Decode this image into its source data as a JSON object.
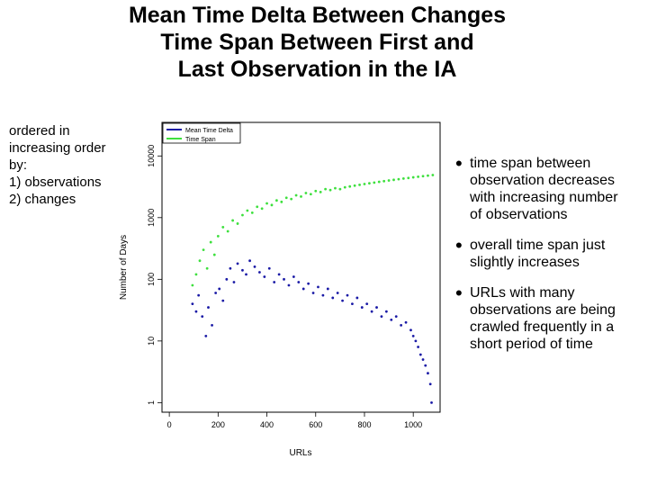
{
  "title_lines": [
    "Mean Time Delta Between Changes",
    "Time Span Between First and",
    "Last Observation in the IA"
  ],
  "side_note_lines": [
    "ordered in",
    "increasing order",
    "by:",
    "1) observations",
    "2) changes"
  ],
  "bullets": [
    {
      "lines": [
        "time span between",
        "observation decreases",
        "with increasing number",
        "of observations"
      ]
    },
    {
      "lines": [
        "overall time span just",
        "slightly increases"
      ]
    },
    {
      "lines": [
        "URLs with many",
        "observations are being",
        "crawled frequently in a",
        "short period of time"
      ]
    }
  ],
  "colors": {
    "mean_time_delta": "#1a1aa6",
    "time_span": "#3ee03e"
  },
  "chart_data": {
    "type": "scatter",
    "xlabel": "URLs",
    "ylabel": "Number of Days",
    "x_ticks": [
      0,
      200,
      400,
      600,
      800,
      1000
    ],
    "y_ticks": [
      1,
      10,
      100,
      1000,
      10000
    ],
    "y_tick_labels": [
      "1",
      "10",
      "100",
      "1000",
      "10000"
    ],
    "xlim": [
      -30,
      1110
    ],
    "ylim": [
      0.7,
      35000
    ],
    "y_scale": "log",
    "legend": "top-left",
    "x_range": [
      90,
      1090
    ],
    "series": [
      {
        "name": "Mean Time Delta",
        "color": "#1a1aa6",
        "points": [
          [
            95,
            40
          ],
          [
            110,
            30
          ],
          [
            120,
            55
          ],
          [
            135,
            25
          ],
          [
            150,
            12
          ],
          [
            160,
            35
          ],
          [
            175,
            18
          ],
          [
            190,
            60
          ],
          [
            205,
            70
          ],
          [
            220,
            45
          ],
          [
            235,
            100
          ],
          [
            250,
            150
          ],
          [
            265,
            90
          ],
          [
            280,
            180
          ],
          [
            300,
            140
          ],
          [
            315,
            120
          ],
          [
            330,
            200
          ],
          [
            350,
            160
          ],
          [
            370,
            130
          ],
          [
            390,
            110
          ],
          [
            410,
            150
          ],
          [
            430,
            90
          ],
          [
            450,
            120
          ],
          [
            470,
            100
          ],
          [
            490,
            80
          ],
          [
            510,
            110
          ],
          [
            530,
            90
          ],
          [
            550,
            70
          ],
          [
            570,
            85
          ],
          [
            590,
            60
          ],
          [
            610,
            75
          ],
          [
            630,
            55
          ],
          [
            650,
            70
          ],
          [
            670,
            50
          ],
          [
            690,
            60
          ],
          [
            710,
            45
          ],
          [
            730,
            55
          ],
          [
            750,
            40
          ],
          [
            770,
            50
          ],
          [
            790,
            35
          ],
          [
            810,
            40
          ],
          [
            830,
            30
          ],
          [
            850,
            35
          ],
          [
            870,
            25
          ],
          [
            890,
            30
          ],
          [
            910,
            22
          ],
          [
            930,
            25
          ],
          [
            950,
            18
          ],
          [
            970,
            20
          ],
          [
            990,
            15
          ],
          [
            1000,
            12
          ],
          [
            1010,
            10
          ],
          [
            1020,
            8
          ],
          [
            1030,
            6
          ],
          [
            1040,
            5
          ],
          [
            1050,
            4
          ],
          [
            1060,
            3
          ],
          [
            1070,
            2
          ],
          [
            1075,
            1
          ]
        ]
      },
      {
        "name": "Time Span",
        "color": "#3ee03e",
        "points": [
          [
            95,
            80
          ],
          [
            110,
            120
          ],
          [
            125,
            200
          ],
          [
            140,
            300
          ],
          [
            155,
            150
          ],
          [
            170,
            400
          ],
          [
            185,
            250
          ],
          [
            200,
            500
          ],
          [
            220,
            700
          ],
          [
            240,
            600
          ],
          [
            260,
            900
          ],
          [
            280,
            800
          ],
          [
            300,
            1100
          ],
          [
            320,
            1300
          ],
          [
            340,
            1200
          ],
          [
            360,
            1500
          ],
          [
            380,
            1400
          ],
          [
            400,
            1700
          ],
          [
            420,
            1600
          ],
          [
            440,
            1900
          ],
          [
            460,
            1800
          ],
          [
            480,
            2100
          ],
          [
            500,
            2000
          ],
          [
            520,
            2300
          ],
          [
            540,
            2200
          ],
          [
            560,
            2500
          ],
          [
            580,
            2400
          ],
          [
            600,
            2700
          ],
          [
            620,
            2600
          ],
          [
            640,
            2900
          ],
          [
            660,
            2800
          ],
          [
            680,
            3000
          ],
          [
            700,
            2900
          ],
          [
            720,
            3100
          ],
          [
            740,
            3200
          ],
          [
            760,
            3300
          ],
          [
            780,
            3400
          ],
          [
            800,
            3500
          ],
          [
            820,
            3600
          ],
          [
            840,
            3700
          ],
          [
            860,
            3800
          ],
          [
            880,
            3900
          ],
          [
            900,
            4000
          ],
          [
            920,
            4100
          ],
          [
            940,
            4200
          ],
          [
            960,
            4300
          ],
          [
            980,
            4400
          ],
          [
            1000,
            4500
          ],
          [
            1020,
            4600
          ],
          [
            1040,
            4700
          ],
          [
            1060,
            4800
          ],
          [
            1080,
            4900
          ]
        ]
      }
    ]
  }
}
